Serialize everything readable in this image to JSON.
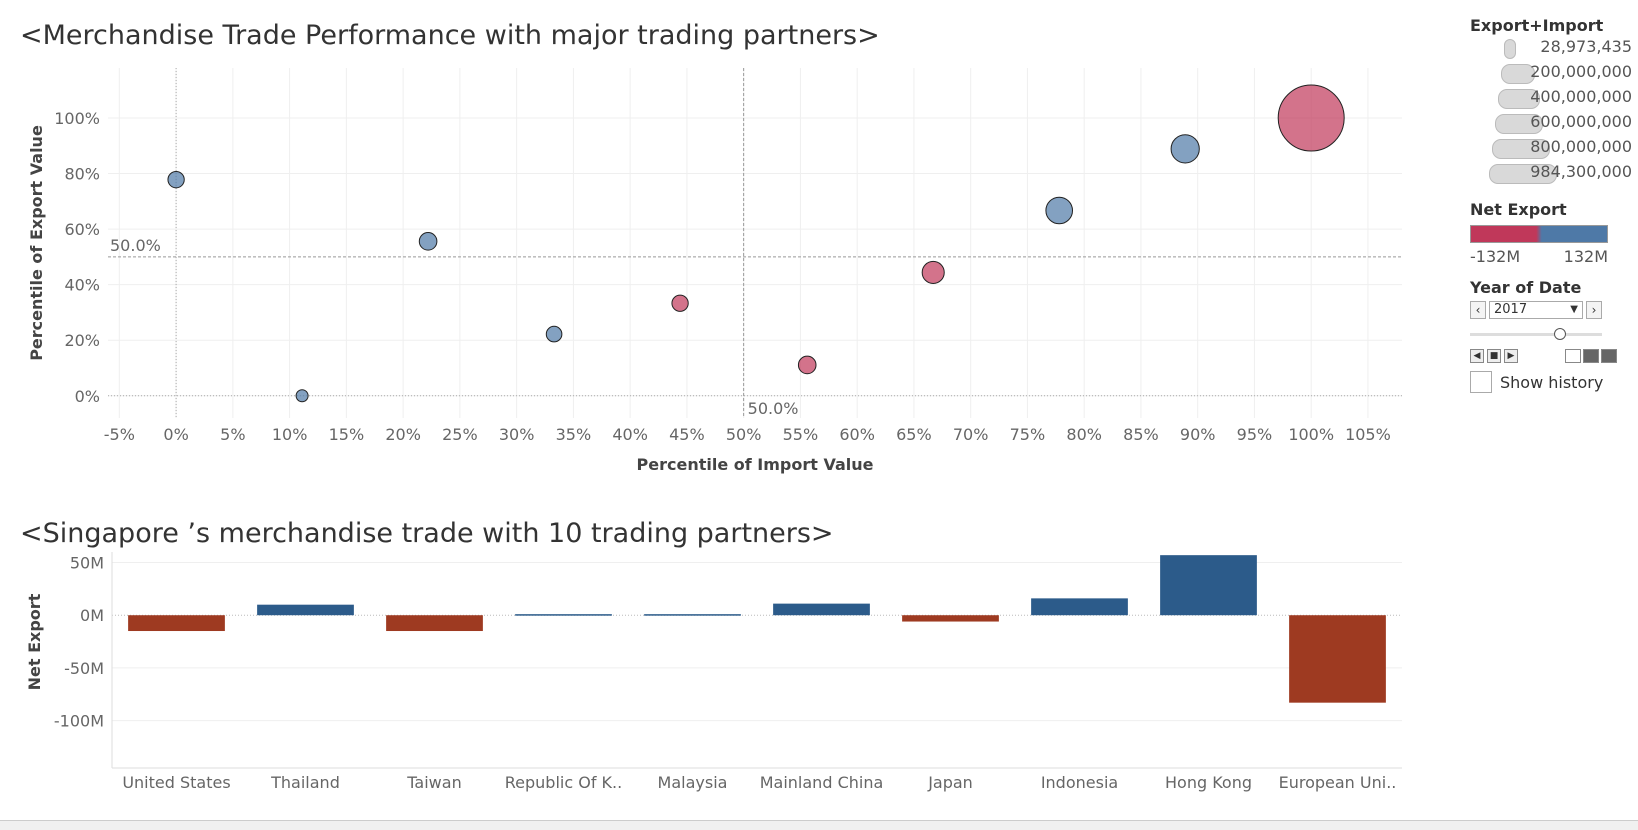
{
  "colors": {
    "negative": "#c0385a",
    "positive": "#4e79a7",
    "bar_negative": "#9e3a21",
    "bar_positive": "#2c5b8a"
  },
  "legend": {
    "size_title": "Export+Import",
    "size_items": [
      "28,973,435",
      "200,000,000",
      "400,000,000",
      "600,000,000",
      "800,000,000",
      "984,300,000"
    ],
    "color_title": "Net Export",
    "color_min": "-132M",
    "color_max": "132M",
    "year_title": "Year of Date",
    "year_value": "2017",
    "show_history": "Show history"
  },
  "chart_data": [
    {
      "type": "scatter",
      "title": "<Merchandise Trade Performance with major trading partners>",
      "xlabel": "Percentile of Import Value",
      "ylabel": "Percentile of Export Value",
      "xlim": [
        -6,
        108
      ],
      "ylim": [
        -8,
        118
      ],
      "x_ticks": [
        -5,
        0,
        5,
        10,
        15,
        20,
        25,
        30,
        35,
        40,
        45,
        50,
        55,
        60,
        65,
        70,
        75,
        80,
        85,
        90,
        95,
        100,
        105
      ],
      "x_tick_labels": [
        "-5%",
        "0%",
        "5%",
        "10%",
        "15%",
        "20%",
        "25%",
        "30%",
        "35%",
        "40%",
        "45%",
        "50%",
        "55%",
        "60%",
        "65%",
        "70%",
        "75%",
        "80%",
        "85%",
        "90%",
        "95%",
        "100%",
        "105%"
      ],
      "y_ticks": [
        0,
        20,
        40,
        60,
        80,
        100
      ],
      "y_tick_labels": [
        "0%",
        "20%",
        "40%",
        "60%",
        "80%",
        "100%"
      ],
      "reference_lines": {
        "x": 50,
        "y": 50,
        "x_label": "50.0%",
        "y_label": "50.0%"
      },
      "grid": true,
      "points": [
        {
          "x": 0,
          "y": 77.8,
          "size": 60000000,
          "net": "positive"
        },
        {
          "x": 11.1,
          "y": 0,
          "size": 28973435,
          "net": "positive"
        },
        {
          "x": 22.2,
          "y": 55.6,
          "size": 70000000,
          "net": "positive"
        },
        {
          "x": 33.3,
          "y": 22.2,
          "size": 55000000,
          "net": "positive"
        },
        {
          "x": 44.4,
          "y": 33.3,
          "size": 60000000,
          "net": "negative"
        },
        {
          "x": 55.6,
          "y": 11.1,
          "size": 70000000,
          "net": "negative"
        },
        {
          "x": 66.7,
          "y": 44.4,
          "size": 110000000,
          "net": "negative"
        },
        {
          "x": 77.8,
          "y": 66.7,
          "size": 160000000,
          "net": "positive"
        },
        {
          "x": 88.9,
          "y": 88.9,
          "size": 180000000,
          "net": "positive"
        },
        {
          "x": 100,
          "y": 100,
          "size": 984300000,
          "net": "negative"
        }
      ]
    },
    {
      "type": "bar",
      "title": "<Singapore ’s merchandise trade with 10 trading partners>",
      "ylabel": "Net Export",
      "categories": [
        "United States",
        "Thailand",
        "Taiwan",
        "Republic Of K..",
        "Malaysia",
        "Mainland China",
        "Japan",
        "Indonesia",
        "Hong Kong",
        "European Uni.."
      ],
      "values": [
        -15,
        10,
        -15,
        1,
        1,
        11,
        -6,
        16,
        57,
        -83
      ],
      "ylim": [
        -145,
        60
      ],
      "y_ticks": [
        50,
        0,
        -50,
        -100
      ],
      "y_tick_labels": [
        "50M",
        "0M",
        "-50M",
        "-100M"
      ]
    }
  ]
}
